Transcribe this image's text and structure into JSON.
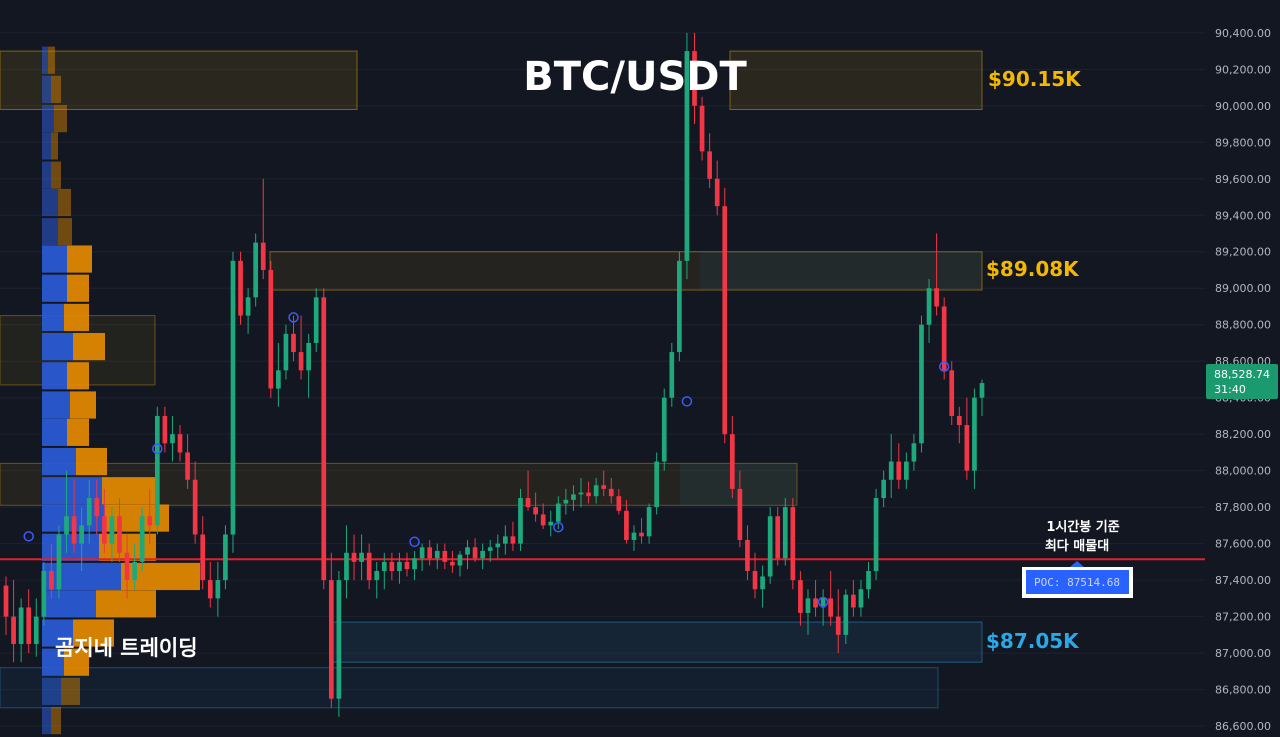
{
  "title": "BTC/USDT",
  "watermark": "곰지네 트레이딩",
  "price_axis": {
    "ticks": [
      "90,400.00",
      "90,200.00",
      "90,000.00",
      "89,800.00",
      "89,600.00",
      "89,400.00",
      "89,200.00",
      "89,000.00",
      "88,800.00",
      "88,600.00",
      "88,400.00",
      "88,200.00",
      "88,000.00",
      "87,800.00",
      "87,600.00",
      "87,400.00",
      "87,200.00",
      "87,000.00",
      "86,800.00",
      "86,600.00"
    ]
  },
  "current_price": {
    "price": "88,528.74",
    "countdown": "31:40"
  },
  "levels": [
    {
      "label": "$90.15K",
      "color": "#f5b800",
      "low": 89980,
      "high": 90300
    },
    {
      "label": "$89.08K",
      "color": "#f5b800",
      "low": 88990,
      "high": 89200
    },
    {
      "label": "$87.05K",
      "color": "#2aa8e8",
      "low": 86950,
      "high": 87170
    }
  ],
  "poc": {
    "label": "POC: 87514.68",
    "value": 87514.68,
    "annotation_line1": "1시간봉 기준",
    "annotation_line2": "최다 매물대",
    "line_color": "#e3212b"
  },
  "colors": {
    "up": "#1ea97c",
    "down": "#f23645",
    "profile_blue": "#2a5bd7",
    "profile_orange": "#e58a00",
    "current_price_bg": "#1a9a6e"
  },
  "chart_data": {
    "type": "candlestick",
    "title": "BTC/USDT",
    "ylim": [
      86540,
      90580
    ],
    "candles": [
      [
        87370,
        87420,
        87100,
        87200
      ],
      [
        87200,
        87400,
        86950,
        87050
      ],
      [
        87050,
        87300,
        86950,
        87250
      ],
      [
        87250,
        87350,
        87000,
        87050
      ],
      [
        87050,
        87300,
        86980,
        87200
      ],
      [
        87200,
        87500,
        87150,
        87450
      ],
      [
        87450,
        87600,
        87300,
        87350
      ],
      [
        87350,
        87700,
        87300,
        87650
      ],
      [
        87650,
        88000,
        87550,
        87750
      ],
      [
        87750,
        87950,
        87550,
        87600
      ],
      [
        87600,
        87800,
        87450,
        87700
      ],
      [
        87700,
        87950,
        87600,
        87850
      ],
      [
        87850,
        87950,
        87650,
        87750
      ],
      [
        87750,
        87900,
        87550,
        87600
      ],
      [
        87600,
        87800,
        87500,
        87750
      ],
      [
        87750,
        87850,
        87500,
        87550
      ],
      [
        87550,
        87650,
        87300,
        87400
      ],
      [
        87400,
        87600,
        87350,
        87500
      ],
      [
        87500,
        87800,
        87450,
        87750
      ],
      [
        87750,
        87900,
        87600,
        87700
      ],
      [
        87700,
        88350,
        87650,
        88300
      ],
      [
        88300,
        88350,
        88100,
        88150
      ],
      [
        88150,
        88300,
        88050,
        88200
      ],
      [
        88200,
        88250,
        88050,
        88100
      ],
      [
        88100,
        88200,
        87900,
        87950
      ],
      [
        87950,
        88050,
        87600,
        87650
      ],
      [
        87650,
        87750,
        87350,
        87400
      ],
      [
        87400,
        87500,
        87250,
        87300
      ],
      [
        87300,
        87500,
        87200,
        87400
      ],
      [
        87400,
        87700,
        87350,
        87650
      ],
      [
        87650,
        89200,
        87550,
        89150
      ],
      [
        89150,
        89200,
        88800,
        88850
      ],
      [
        88850,
        89000,
        88750,
        88950
      ],
      [
        88950,
        89300,
        88900,
        89250
      ],
      [
        89250,
        89600,
        89050,
        89100
      ],
      [
        89100,
        89150,
        88400,
        88450
      ],
      [
        88450,
        88700,
        88350,
        88550
      ],
      [
        88550,
        88800,
        88500,
        88750
      ],
      [
        88750,
        88850,
        88600,
        88650
      ],
      [
        88650,
        88850,
        88500,
        88550
      ],
      [
        88550,
        88750,
        88400,
        88700
      ],
      [
        88700,
        89000,
        88650,
        88950
      ],
      [
        88950,
        89000,
        87350,
        87400
      ],
      [
        87400,
        87550,
        86700,
        86750
      ],
      [
        86750,
        87450,
        86650,
        87400
      ],
      [
        87400,
        87700,
        87300,
        87550
      ],
      [
        87550,
        87650,
        87400,
        87500
      ],
      [
        87500,
        87650,
        87400,
        87550
      ],
      [
        87550,
        87600,
        87350,
        87400
      ],
      [
        87400,
        87500,
        87300,
        87450
      ],
      [
        87450,
        87550,
        87350,
        87500
      ],
      [
        87500,
        87550,
        87400,
        87450
      ],
      [
        87450,
        87550,
        87380,
        87500
      ],
      [
        87500,
        87550,
        87420,
        87460
      ],
      [
        87460,
        87560,
        87400,
        87520
      ],
      [
        87520,
        87600,
        87450,
        87580
      ],
      [
        87580,
        87620,
        87480,
        87520
      ],
      [
        87520,
        87600,
        87460,
        87560
      ],
      [
        87560,
        87600,
        87460,
        87500
      ],
      [
        87500,
        87560,
        87440,
        87480
      ],
      [
        87480,
        87560,
        87420,
        87540
      ],
      [
        87540,
        87620,
        87460,
        87580
      ],
      [
        87580,
        87630,
        87500,
        87520
      ],
      [
        87520,
        87600,
        87460,
        87560
      ],
      [
        87560,
        87620,
        87500,
        87580
      ],
      [
        87580,
        87650,
        87520,
        87600
      ],
      [
        87600,
        87700,
        87540,
        87640
      ],
      [
        87640,
        87720,
        87560,
        87600
      ],
      [
        87600,
        87900,
        87560,
        87850
      ],
      [
        87850,
        88000,
        87780,
        87800
      ],
      [
        87800,
        87880,
        87720,
        87760
      ],
      [
        87760,
        87820,
        87680,
        87700
      ],
      [
        87700,
        87780,
        87640,
        87720
      ],
      [
        87720,
        87860,
        87680,
        87820
      ],
      [
        87820,
        87900,
        87760,
        87840
      ],
      [
        87840,
        87920,
        87780,
        87870
      ],
      [
        87870,
        87960,
        87800,
        87880
      ],
      [
        87880,
        87940,
        87820,
        87860
      ],
      [
        87860,
        87960,
        87820,
        87920
      ],
      [
        87920,
        88000,
        87860,
        87900
      ],
      [
        87900,
        87960,
        87820,
        87860
      ],
      [
        87860,
        87900,
        87760,
        87780
      ],
      [
        87780,
        87840,
        87600,
        87620
      ],
      [
        87620,
        87700,
        87560,
        87660
      ],
      [
        87660,
        87740,
        87600,
        87640
      ],
      [
        87640,
        87820,
        87600,
        87800
      ],
      [
        87800,
        88100,
        87760,
        88050
      ],
      [
        88050,
        88450,
        88000,
        88400
      ],
      [
        88400,
        88700,
        88350,
        88650
      ],
      [
        88650,
        89200,
        88600,
        89150
      ],
      [
        89150,
        90400,
        89050,
        90300
      ],
      [
        90300,
        90400,
        89900,
        90000
      ],
      [
        90000,
        90050,
        89700,
        89750
      ],
      [
        89750,
        89850,
        89550,
        89600
      ],
      [
        89600,
        89700,
        89400,
        89450
      ],
      [
        89450,
        89550,
        88150,
        88200
      ],
      [
        88200,
        88300,
        87850,
        87900
      ],
      [
        87900,
        88000,
        87580,
        87620
      ],
      [
        87620,
        87700,
        87400,
        87450
      ],
      [
        87450,
        87550,
        87300,
        87350
      ],
      [
        87350,
        87480,
        87250,
        87420
      ],
      [
        87420,
        87800,
        87380,
        87750
      ],
      [
        87750,
        87800,
        87480,
        87520
      ],
      [
        87520,
        87850,
        87480,
        87800
      ],
      [
        87800,
        87850,
        87350,
        87400
      ],
      [
        87400,
        87450,
        87150,
        87220
      ],
      [
        87220,
        87350,
        87100,
        87300
      ],
      [
        87300,
        87400,
        87200,
        87250
      ],
      [
        87250,
        87350,
        87150,
        87300
      ],
      [
        87300,
        87450,
        87150,
        87200
      ],
      [
        87200,
        87350,
        87000,
        87100
      ],
      [
        87100,
        87350,
        87050,
        87320
      ],
      [
        87320,
        87400,
        87200,
        87250
      ],
      [
        87250,
        87400,
        87200,
        87350
      ],
      [
        87350,
        87500,
        87300,
        87450
      ],
      [
        87450,
        87900,
        87400,
        87850
      ],
      [
        87850,
        88000,
        87800,
        87950
      ],
      [
        87950,
        88200,
        87850,
        88050
      ],
      [
        88050,
        88150,
        87900,
        87950
      ],
      [
        87950,
        88100,
        87900,
        88050
      ],
      [
        88050,
        88200,
        88000,
        88150
      ],
      [
        88150,
        88850,
        88100,
        88800
      ],
      [
        88800,
        89050,
        88700,
        89000
      ],
      [
        89000,
        89300,
        88850,
        88900
      ],
      [
        88900,
        88950,
        88500,
        88550
      ],
      [
        88550,
        88600,
        88250,
        88300
      ],
      [
        88300,
        88350,
        88150,
        88250
      ],
      [
        88250,
        88400,
        87950,
        88000
      ],
      [
        88000,
        88450,
        87900,
        88400
      ],
      [
        88400,
        88500,
        88300,
        88480
      ]
    ],
    "markers": [
      {
        "index": 3,
        "price": 87640
      },
      {
        "index": 20,
        "price": 88120
      },
      {
        "index": 38,
        "price": 88840
      },
      {
        "index": 54,
        "price": 87610
      },
      {
        "index": 73,
        "price": 87690
      },
      {
        "index": 90,
        "price": 88380
      },
      {
        "index": 108,
        "price": 87280
      },
      {
        "index": 124,
        "price": 88570
      }
    ],
    "volume_profile": [
      {
        "price": 90250,
        "blue": 12,
        "orange": 14
      },
      {
        "price": 90090,
        "blue": 18,
        "orange": 20
      },
      {
        "price": 89930,
        "blue": 24,
        "orange": 26
      },
      {
        "price": 89780,
        "blue": 18,
        "orange": 14
      },
      {
        "price": 89620,
        "blue": 18,
        "orange": 20
      },
      {
        "price": 89470,
        "blue": 32,
        "orange": 26
      },
      {
        "price": 89310,
        "blue": 32,
        "orange": 28
      },
      {
        "price": 89160,
        "blue": 50,
        "orange": 50
      },
      {
        "price": 89000,
        "blue": 50,
        "orange": 44
      },
      {
        "price": 88840,
        "blue": 44,
        "orange": 50
      },
      {
        "price": 88680,
        "blue": 62,
        "orange": 64
      },
      {
        "price": 88520,
        "blue": 50,
        "orange": 44
      },
      {
        "price": 88360,
        "blue": 56,
        "orange": 52
      },
      {
        "price": 88210,
        "blue": 50,
        "orange": 44
      },
      {
        "price": 88050,
        "blue": 68,
        "orange": 62
      },
      {
        "price": 87890,
        "blue": 120,
        "orange": 108
      },
      {
        "price": 87740,
        "blue": 126,
        "orange": 128
      },
      {
        "price": 87580,
        "blue": 114,
        "orange": 114
      },
      {
        "price": 87420,
        "blue": 158,
        "orange": 158
      },
      {
        "price": 87270,
        "blue": 108,
        "orange": 120
      },
      {
        "price": 87110,
        "blue": 62,
        "orange": 82
      },
      {
        "price": 86950,
        "blue": 44,
        "orange": 50
      },
      {
        "price": 86790,
        "blue": 38,
        "orange": 38
      },
      {
        "price": 86630,
        "blue": 18,
        "orange": 20
      }
    ]
  }
}
